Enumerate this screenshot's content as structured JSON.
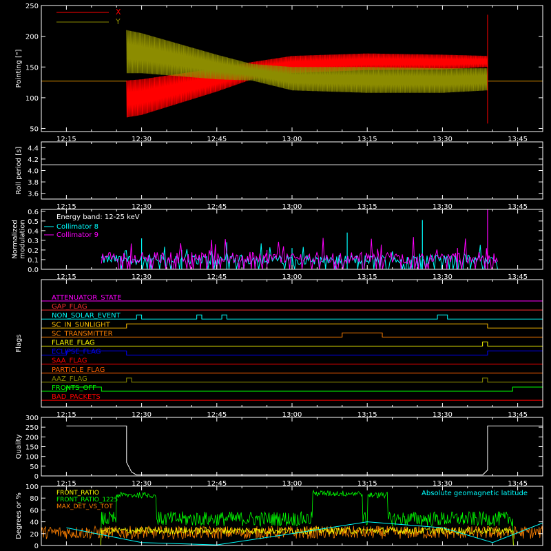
{
  "time_ticks": [
    "12:15",
    "12:30",
    "12:45",
    "13:00",
    "13:15",
    "13:30",
    "13:45"
  ],
  "time_range_hours": [
    12.1667,
    13.8333
  ],
  "chart_data": [
    {
      "type": "line",
      "ylabel": "Pointing [\"]",
      "ylim": [
        45,
        250
      ],
      "yticks": [
        "50",
        "100",
        "150",
        "200",
        "250"
      ],
      "legend_position": "top-left",
      "colors": {
        "x": "#ff0000",
        "y": "#8c8c00"
      },
      "series": [
        {
          "name": "X",
          "color": "#ff0000",
          "envelope": {
            "t": [
              "12:27",
              "12:30",
              "12:45",
              "12:52",
              "13:00",
              "13:15",
              "13:30",
              "13:39"
            ],
            "low": [
              68,
              72,
              110,
              130,
              140,
              145,
              146,
              150
            ],
            "high": [
              128,
              130,
              148,
              158,
              168,
              172,
              170,
              168
            ]
          }
        },
        {
          "name": "Y",
          "color": "#8c8c00",
          "envelope": {
            "t": [
              "12:27",
              "12:30",
              "12:45",
              "12:52",
              "13:00",
              "13:15",
              "13:30",
              "13:39"
            ],
            "low": [
              140,
              140,
              130,
              128,
              112,
              108,
              108,
              112
            ],
            "high": [
              210,
              205,
              170,
              155,
              150,
              150,
              148,
              148
            ]
          }
        }
      ],
      "baseline_before": 127,
      "baseline_after": 127,
      "active_start": "12:27",
      "active_end": "13:39"
    },
    {
      "type": "line",
      "ylabel": "Roll period [s]",
      "ylim": [
        3.5,
        4.5
      ],
      "yticks": [
        "3.6",
        "3.8",
        "4.0",
        "4.2",
        "4.4"
      ],
      "series": [
        {
          "color": "#ffffff",
          "value": 4.1
        }
      ]
    },
    {
      "type": "bar",
      "ylabel": "Normalized modulation",
      "ylabel_lines": [
        "Normalized",
        "modulation"
      ],
      "ylim": [
        0,
        0.62
      ],
      "yticks": [
        "0.0",
        "0.1",
        "0.2",
        "0.3",
        "0.4",
        "0.5",
        "0.6"
      ],
      "annotation": "Energy band: 12-25 keV",
      "legend_position": "top-left",
      "series": [
        {
          "name": "Collimator 8",
          "color": "#00ffff",
          "typical": 0.1,
          "spikes": [
            {
              "t": "12:30",
              "v": 0.32
            },
            {
              "t": "12:47",
              "v": 0.28
            },
            {
              "t": "13:11",
              "v": 0.38
            },
            {
              "t": "13:26",
              "v": 0.51
            },
            {
              "t": "13:00",
              "v": 0.22
            },
            {
              "t": "12:38",
              "v": 0.2
            }
          ]
        },
        {
          "name": "Collimator 9",
          "color": "#ff00ff",
          "typical": 0.12,
          "spikes": [
            {
              "t": "13:39",
              "v": 0.62
            },
            {
              "t": "12:55",
              "v": 0.2
            },
            {
              "t": "13:33",
              "v": 0.22
            }
          ]
        }
      ],
      "active_start": "12:22",
      "active_end": "13:41"
    },
    {
      "type": "line",
      "ylabel": "Flags",
      "flags": [
        {
          "name": "ATTENUATOR_STATE",
          "color": "#ff00ff",
          "segments": []
        },
        {
          "name": "GAP_FLAG",
          "color": "#ff3030",
          "segments": []
        },
        {
          "name": "NON_SOLAR_EVENT",
          "color": "#00ffff",
          "segments": [
            [
              "12:29",
              "12:30"
            ],
            [
              "12:41",
              "12:42"
            ],
            [
              "12:46",
              "12:47"
            ],
            [
              "13:29",
              "13:31"
            ]
          ]
        },
        {
          "name": "SC_IN_SUNLIGHT",
          "color": "#ffc000",
          "segments": [
            [
              "12:27",
              "13:39"
            ]
          ]
        },
        {
          "name": "SC_TRANSMITTER",
          "color": "#ff8000",
          "segments": [
            [
              "13:10",
              "13:18"
            ]
          ]
        },
        {
          "name": "FLARE_FLAG",
          "color": "#ffff00",
          "segments": [
            [
              "13:38",
              "13:39"
            ]
          ]
        },
        {
          "name": "ECLIPSE_FLAG",
          "color": "#0000ff",
          "segments": [
            [
              "12:15",
              "12:27"
            ],
            [
              "13:39",
              "13:50"
            ]
          ],
          "invert": true
        },
        {
          "name": "SAA_FLAG",
          "color": "#ff0000",
          "segments": []
        },
        {
          "name": "PARTICLE_FLAG",
          "color": "#ff6000",
          "segments": []
        },
        {
          "name": "AAZ_FLAG",
          "color": "#8c8c00",
          "segments": [
            [
              "12:27",
              "12:28"
            ],
            [
              "13:38",
              "13:39"
            ]
          ]
        },
        {
          "name": "FRONTS_OFF",
          "color": "#00ff00",
          "segments": [
            [
              "12:15",
              "12:22"
            ],
            [
              "13:44",
              "13:50"
            ]
          ]
        },
        {
          "name": "BAD_PACKETS",
          "color": "#ff0000",
          "segments": []
        }
      ]
    },
    {
      "type": "line",
      "ylabel": "Quality",
      "ylim": [
        0,
        300
      ],
      "yticks": [
        "0",
        "50",
        "100",
        "150",
        "200",
        "250",
        "300"
      ],
      "series": [
        {
          "color": "#ffffff",
          "points": [
            [
              "12:15",
              256
            ],
            [
              "12:27",
              256
            ],
            [
              "12:27",
              70
            ],
            [
              "12:28",
              20
            ],
            [
              "12:29",
              5
            ],
            [
              "13:38",
              5
            ],
            [
              "13:39",
              30
            ],
            [
              "13:39",
              256
            ],
            [
              "13:50",
              256
            ]
          ]
        }
      ]
    },
    {
      "type": "line",
      "ylabel": "Degrees or %",
      "ylim": [
        0,
        100
      ],
      "yticks": [
        "0",
        "20",
        "40",
        "60",
        "80",
        "100"
      ],
      "legend_position": "top-left",
      "annotation": "Absolute geomagnetic latitude",
      "annotation_color": "#00ffff",
      "series": [
        {
          "name": "FRONT_RATIO",
          "color": "#ffff00",
          "level": 25
        },
        {
          "name": "FRONT_RATIO_1225",
          "color": "#00ff00",
          "level": 45
        },
        {
          "name": "MAX_DET_VS_TOT",
          "color": "#ff8000",
          "level": 22
        },
        {
          "name": "Absolute geomagnetic latitude",
          "color": "#00ffff",
          "points": [
            [
              "12:15",
              30
            ],
            [
              "12:30",
              5
            ],
            [
              "12:45",
              1
            ],
            [
              "13:00",
              20
            ],
            [
              "13:15",
              40
            ],
            [
              "13:30",
              30
            ],
            [
              "13:40",
              5
            ],
            [
              "13:50",
              38
            ]
          ]
        }
      ],
      "green_high": [
        [
          "12:25",
          "12:33",
          85
        ],
        [
          "13:04",
          "13:14",
          88
        ],
        [
          "13:15",
          "13:19",
          85
        ]
      ]
    }
  ]
}
